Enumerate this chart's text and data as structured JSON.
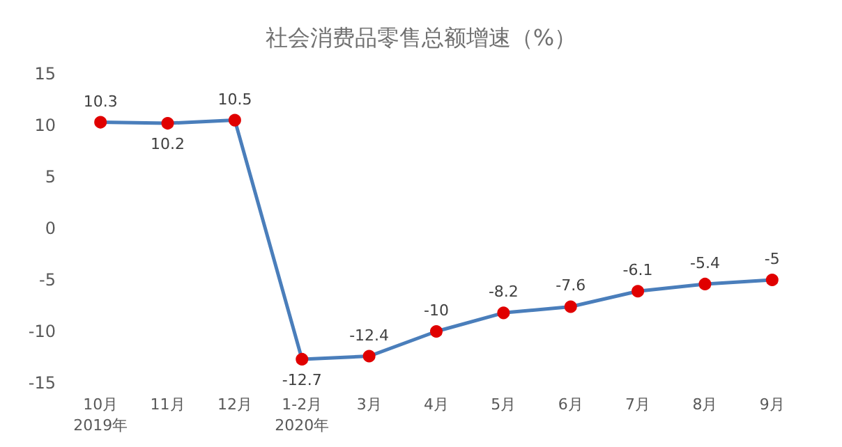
{
  "chart_data": {
    "type": "line",
    "title": "社会消费品零售总额增速（%）",
    "categories": [
      "10月\n2019年",
      "11月",
      "12月",
      "1-2月\n2020年",
      "3月",
      "4月",
      "5月",
      "6月",
      "7月",
      "8月",
      "9月"
    ],
    "series": [
      {
        "color": "#4a7ebb",
        "values": [
          10.3,
          10.2,
          10.5,
          -12.7,
          -12.4,
          -10,
          -8.2,
          -7.6,
          -6.1,
          -5.4,
          -5
        ]
      }
    ],
    "ylim": [
      -15,
      15
    ],
    "yticks": [
      -15,
      -10,
      -5,
      0,
      5,
      10,
      15
    ],
    "grid": false,
    "marker": "circle",
    "line_style": "solid",
    "data_labels": true
  }
}
